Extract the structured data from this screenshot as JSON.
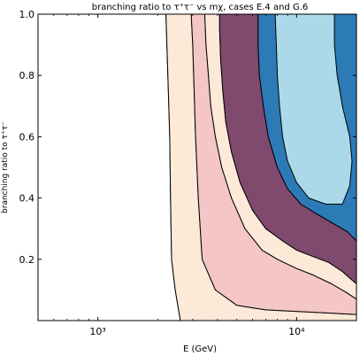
{
  "chart_data": {
    "type": "area",
    "title": "branching ratio  to τ⁺τ⁻  vs mχ, cases E.4 and G.6",
    "xlabel": "E (GeV)",
    "ylabel": "branching ratio  to τ⁺τ⁻",
    "xscale": "log",
    "xlim": [
      500,
      20000
    ],
    "ylim": [
      0.0,
      1.0
    ],
    "x_ticks": [
      {
        "value": 1000,
        "label": "10³"
      },
      {
        "value": 10000,
        "label": "10⁴"
      }
    ],
    "y_ticks": [
      {
        "value": 0.2,
        "label": "0.2"
      },
      {
        "value": 0.4,
        "label": "0.4"
      },
      {
        "value": 0.6,
        "label": "0.6"
      },
      {
        "value": 0.8,
        "label": "0.8"
      },
      {
        "value": 1.0,
        "label": "1.0"
      }
    ],
    "grid": false,
    "legend": "none",
    "colors": {
      "pink": "#f4c6c6",
      "cream": "#fde9d8",
      "purple": "#80496e",
      "blue": "#2c7bb6",
      "lightblue": "#abd9e9",
      "outline": "#000000"
    },
    "regions": [
      {
        "fill": "pink",
        "boundary": [
          [
            2200,
            1.0
          ],
          [
            2250,
            0.8
          ],
          [
            2300,
            0.6
          ],
          [
            2320,
            0.4
          ],
          [
            2350,
            0.2
          ],
          [
            2450,
            0.1
          ],
          [
            2600,
            0.0
          ],
          [
            20000,
            0.0
          ],
          [
            20000,
            1.0
          ]
        ]
      },
      {
        "fill": "cream",
        "boundary": [
          [
            3000,
            0.9
          ],
          [
            3100,
            0.6
          ],
          [
            3200,
            0.4
          ],
          [
            3350,
            0.2
          ],
          [
            3900,
            0.1
          ],
          [
            5000,
            0.05
          ],
          [
            7000,
            0.035
          ],
          [
            20000,
            0.02
          ],
          [
            20000,
            0.0
          ],
          [
            2600,
            0.0
          ],
          [
            2450,
            0.1
          ],
          [
            2350,
            0.2
          ],
          [
            2320,
            0.4
          ],
          [
            2300,
            0.6
          ],
          [
            2250,
            0.8
          ],
          [
            2200,
            1.0
          ],
          [
            2950,
            1.0
          ]
        ]
      },
      {
        "fill": "pink",
        "boundary": [
          [
            2950,
            1.0
          ],
          [
            3000,
            0.9
          ],
          [
            3100,
            0.6
          ],
          [
            3200,
            0.4
          ],
          [
            3350,
            0.2
          ],
          [
            3900,
            0.1
          ],
          [
            5000,
            0.05
          ],
          [
            7000,
            0.035
          ],
          [
            20000,
            0.02
          ],
          [
            20000,
            0.07
          ],
          [
            18000,
            0.09
          ],
          [
            15000,
            0.12
          ],
          [
            12000,
            0.15
          ],
          [
            10000,
            0.17
          ],
          [
            8000,
            0.2
          ],
          [
            6700,
            0.23
          ],
          [
            5500,
            0.3
          ],
          [
            4700,
            0.4
          ],
          [
            4200,
            0.5
          ],
          [
            3900,
            0.6
          ],
          [
            3700,
            0.7
          ],
          [
            3600,
            0.8
          ],
          [
            3500,
            0.9
          ],
          [
            3450,
            1.0
          ]
        ]
      },
      {
        "fill": "cream",
        "boundary": [
          [
            3450,
            1.0
          ],
          [
            3500,
            0.9
          ],
          [
            3600,
            0.8
          ],
          [
            3700,
            0.7
          ],
          [
            3900,
            0.6
          ],
          [
            4200,
            0.5
          ],
          [
            4700,
            0.4
          ],
          [
            5500,
            0.3
          ],
          [
            6700,
            0.23
          ],
          [
            8000,
            0.2
          ],
          [
            10000,
            0.17
          ],
          [
            12000,
            0.15
          ],
          [
            15000,
            0.12
          ],
          [
            18000,
            0.09
          ],
          [
            20000,
            0.07
          ],
          [
            20000,
            0.12
          ],
          [
            17000,
            0.16
          ],
          [
            14500,
            0.19
          ],
          [
            12000,
            0.21
          ],
          [
            10000,
            0.23
          ],
          [
            8500,
            0.26
          ],
          [
            7000,
            0.3
          ],
          [
            6000,
            0.36
          ],
          [
            5200,
            0.45
          ],
          [
            4700,
            0.55
          ],
          [
            4400,
            0.65
          ],
          [
            4250,
            0.75
          ],
          [
            4150,
            0.85
          ],
          [
            4100,
            0.95
          ],
          [
            4100,
            1.0
          ]
        ]
      },
      {
        "fill": "purple",
        "boundary": [
          [
            4100,
            1.0
          ],
          [
            4100,
            0.95
          ],
          [
            4150,
            0.85
          ],
          [
            4250,
            0.75
          ],
          [
            4400,
            0.65
          ],
          [
            4700,
            0.55
          ],
          [
            5200,
            0.45
          ],
          [
            6000,
            0.36
          ],
          [
            7000,
            0.3
          ],
          [
            8500,
            0.26
          ],
          [
            10000,
            0.23
          ],
          [
            12000,
            0.21
          ],
          [
            14500,
            0.19
          ],
          [
            17000,
            0.16
          ],
          [
            20000,
            0.12
          ],
          [
            20000,
            0.26
          ],
          [
            18000,
            0.29
          ],
          [
            15000,
            0.32
          ],
          [
            12500,
            0.35
          ],
          [
            10500,
            0.38
          ],
          [
            9000,
            0.43
          ],
          [
            8000,
            0.5
          ],
          [
            7200,
            0.6
          ],
          [
            6800,
            0.7
          ],
          [
            6500,
            0.8
          ],
          [
            6400,
            0.9
          ],
          [
            6400,
            1.0
          ]
        ]
      },
      {
        "fill": "blue",
        "boundary": [
          [
            6400,
            1.0
          ],
          [
            6400,
            0.9
          ],
          [
            6500,
            0.8
          ],
          [
            6800,
            0.7
          ],
          [
            7200,
            0.6
          ],
          [
            8000,
            0.5
          ],
          [
            9000,
            0.43
          ],
          [
            10500,
            0.38
          ],
          [
            12500,
            0.35
          ],
          [
            15000,
            0.32
          ],
          [
            18000,
            0.29
          ],
          [
            20000,
            0.26
          ],
          [
            20000,
            1.0
          ]
        ]
      },
      {
        "fill": "lightblue",
        "boundary": [
          [
            7800,
            1.0
          ],
          [
            7900,
            0.9
          ],
          [
            8000,
            0.8
          ],
          [
            8200,
            0.7
          ],
          [
            8500,
            0.6
          ],
          [
            9000,
            0.52
          ],
          [
            10000,
            0.45
          ],
          [
            11500,
            0.4
          ],
          [
            14000,
            0.38
          ],
          [
            17000,
            0.38
          ],
          [
            18500,
            0.44
          ],
          [
            19000,
            0.52
          ],
          [
            18500,
            0.6
          ],
          [
            17000,
            0.7
          ],
          [
            16000,
            0.8
          ],
          [
            15500,
            0.9
          ],
          [
            15500,
            1.0
          ]
        ]
      }
    ]
  }
}
